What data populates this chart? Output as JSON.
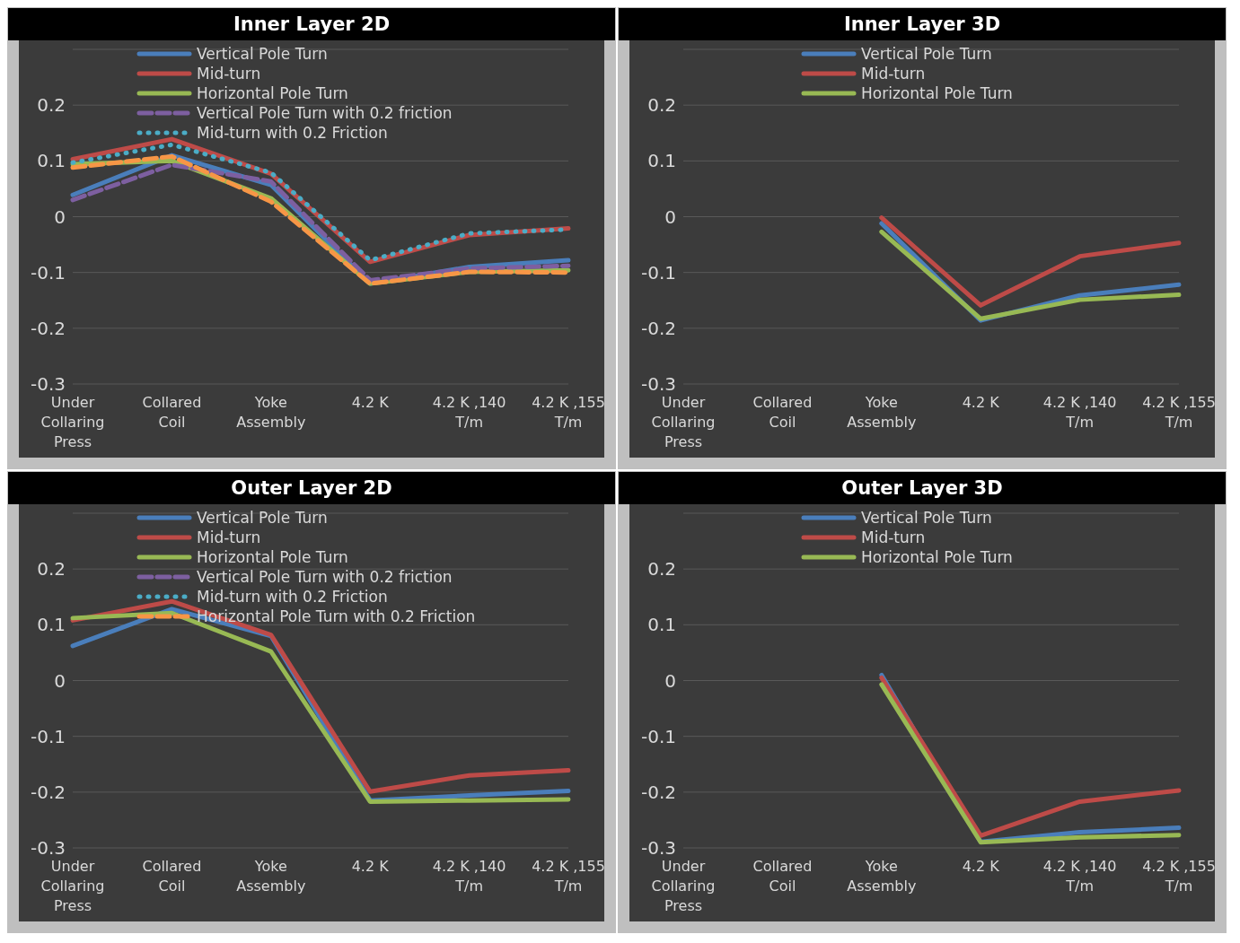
{
  "chart_data": [
    {
      "type": "line",
      "title": "Inner Layer 2D",
      "categories": [
        "Under Collaring Press",
        "Collared Coil",
        "Yoke Assembly",
        "4.2 K",
        "4.2 K ,140 T/m",
        "4.2 K ,155 T/m"
      ],
      "ylim": [
        -0.3,
        0.3
      ],
      "yticks": [
        -0.3,
        -0.2,
        -0.1,
        0,
        0.1,
        0.2
      ],
      "grid": "y",
      "legend": "top",
      "marker": "none",
      "series": [
        {
          "name": "Vertical Pole Turn",
          "color": "#4a7ebb",
          "line_style": "solid",
          "values": [
            0.039,
            0.11,
            0.057,
            -0.12,
            -0.09,
            -0.078
          ]
        },
        {
          "name": "Mid-turn",
          "color": "#be4b48",
          "line_style": "solid",
          "values": [
            0.103,
            0.139,
            0.077,
            -0.081,
            -0.033,
            -0.021
          ]
        },
        {
          "name": "Horizontal Pole Turn",
          "color": "#98b954",
          "line_style": "solid",
          "values": [
            0.094,
            0.1,
            0.033,
            -0.12,
            -0.099,
            -0.096
          ]
        },
        {
          "name": "Vertical Pole Turn with 0.2 friction",
          "color": "#7d5fa0",
          "line_style": "dashed",
          "values": [
            0.03,
            0.093,
            0.063,
            -0.114,
            -0.093,
            -0.088
          ]
        },
        {
          "name": "Mid-turn with 0.2 Friction",
          "color": "#4bacc6",
          "line_style": "dotted",
          "values": [
            0.097,
            0.129,
            0.079,
            -0.078,
            -0.03,
            -0.023
          ]
        },
        {
          "color": "#f79646",
          "line_style": "dashed",
          "values": [
            0.088,
            0.108,
            0.027,
            -0.12,
            -0.099,
            -0.1
          ]
        }
      ]
    },
    {
      "type": "line",
      "title": "Inner Layer 3D",
      "categories": [
        "Under Collaring Press",
        "Collared Coil",
        "Yoke Assembly",
        "4.2 K",
        "4.2 K ,140 T/m",
        "4.2 K ,155 T/m"
      ],
      "ylim": [
        -0.3,
        0.3
      ],
      "yticks": [
        -0.3,
        -0.2,
        -0.1,
        0,
        0.1,
        0.2
      ],
      "grid": "y",
      "legend": "top",
      "marker": "none",
      "series": [
        {
          "name": "Vertical Pole Turn",
          "color": "#4a7ebb",
          "line_style": "solid",
          "values": [
            null,
            null,
            -0.012,
            -0.186,
            -0.141,
            -0.122
          ]
        },
        {
          "name": "Mid-turn",
          "color": "#be4b48",
          "line_style": "solid",
          "values": [
            null,
            null,
            -0.002,
            -0.159,
            -0.071,
            -0.047
          ]
        },
        {
          "name": "Horizontal Pole Turn",
          "color": "#98b954",
          "line_style": "solid",
          "values": [
            null,
            null,
            -0.027,
            -0.183,
            -0.149,
            -0.14
          ]
        }
      ]
    },
    {
      "type": "line",
      "title": "Outer Layer 2D",
      "categories": [
        "Under Collaring Press",
        "Collared Coil",
        "Yoke Assembly",
        "4.2 K",
        "4.2 K ,140 T/m",
        "4.2 K ,155 T/m"
      ],
      "ylim": [
        -0.3,
        0.3
      ],
      "yticks": [
        -0.3,
        -0.2,
        -0.1,
        0,
        0.1,
        0.2
      ],
      "grid": "y",
      "legend": "top",
      "marker": "none",
      "series": [
        {
          "name": "Vertical Pole Turn",
          "color": "#4a7ebb",
          "line_style": "solid",
          "values": [
            0.062,
            0.128,
            0.08,
            -0.215,
            -0.206,
            -0.198
          ]
        },
        {
          "name": "Mid-turn",
          "color": "#be4b48",
          "line_style": "solid",
          "values": [
            0.108,
            0.142,
            0.082,
            -0.199,
            -0.17,
            -0.161
          ]
        },
        {
          "name": "Horizontal Pole Turn",
          "color": "#98b954",
          "line_style": "solid",
          "values": [
            0.112,
            0.121,
            0.052,
            -0.217,
            -0.215,
            -0.213
          ]
        },
        {
          "name": "Vertical Pole Turn with 0.2 friction",
          "color": "#7d5fa0",
          "line_style": "dashed",
          "values": [
            null,
            null,
            null,
            null,
            null,
            null
          ]
        },
        {
          "name": "Mid-turn with 0.2 Friction",
          "color": "#4bacc6",
          "line_style": "dotted",
          "values": [
            null,
            null,
            null,
            null,
            null,
            null
          ]
        },
        {
          "name": "Horizontal Pole Turn with 0.2 Friction",
          "color": "#f79646",
          "line_style": "dashed",
          "values": [
            null,
            null,
            null,
            null,
            null,
            null
          ]
        }
      ]
    },
    {
      "type": "line",
      "title": "Outer Layer 3D",
      "categories": [
        "Under Collaring Press",
        "Collared Coil",
        "Yoke Assembly",
        "4.2 K",
        "4.2 K ,140 T/m",
        "4.2 K ,155 T/m"
      ],
      "ylim": [
        -0.3,
        0.3
      ],
      "yticks": [
        -0.3,
        -0.2,
        -0.1,
        0,
        0.1,
        0.2
      ],
      "grid": "y",
      "legend": "top",
      "marker": "none",
      "series": [
        {
          "name": "Vertical Pole Turn",
          "color": "#4a7ebb",
          "line_style": "solid",
          "values": [
            null,
            null,
            0.01,
            -0.289,
            -0.272,
            -0.264
          ]
        },
        {
          "name": "Mid-turn",
          "color": "#be4b48",
          "line_style": "solid",
          "values": [
            null,
            null,
            0.005,
            -0.278,
            -0.217,
            -0.197
          ]
        },
        {
          "name": "Horizontal Pole Turn",
          "color": "#98b954",
          "line_style": "solid",
          "values": [
            null,
            null,
            -0.007,
            -0.29,
            -0.281,
            -0.277
          ]
        }
      ]
    }
  ]
}
